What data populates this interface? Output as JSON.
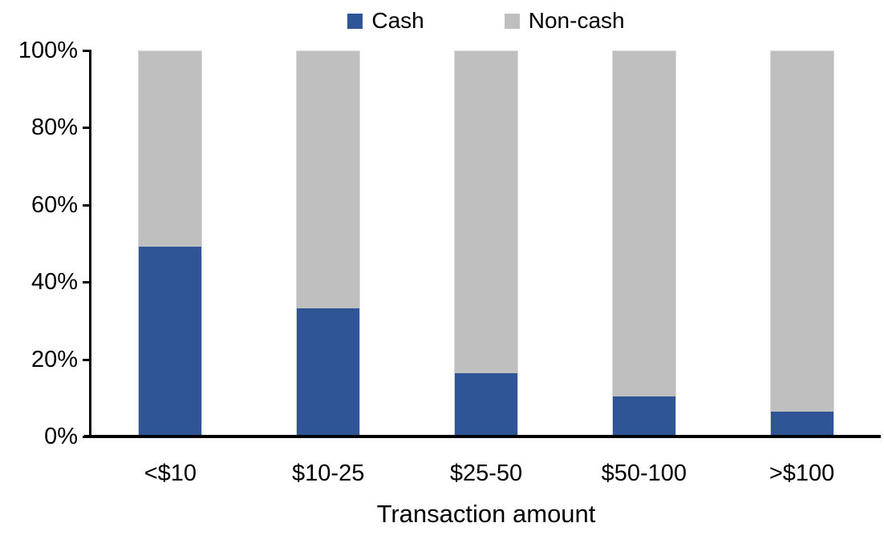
{
  "chart_data": {
    "type": "bar",
    "variant": "stacked-100",
    "title": "",
    "xlabel": "Transaction amount",
    "ylabel": "",
    "categories": [
      "<$10",
      "$10-25",
      "$25-50",
      "$50-100",
      ">$100"
    ],
    "series": [
      {
        "name": "Cash",
        "color": "#2f5597",
        "values": [
          49,
          33,
          16,
          10,
          6
        ]
      },
      {
        "name": "Non-cash",
        "color": "#bfbfbf",
        "values": [
          51,
          67,
          84,
          90,
          94
        ]
      }
    ],
    "ylim": [
      0,
      100
    ],
    "yticks": [
      "0%",
      "20%",
      "40%",
      "60%",
      "80%",
      "100%"
    ],
    "grid": false,
    "legend_position": "top-center",
    "axis_color": "#000000",
    "text_color": "#000000"
  }
}
